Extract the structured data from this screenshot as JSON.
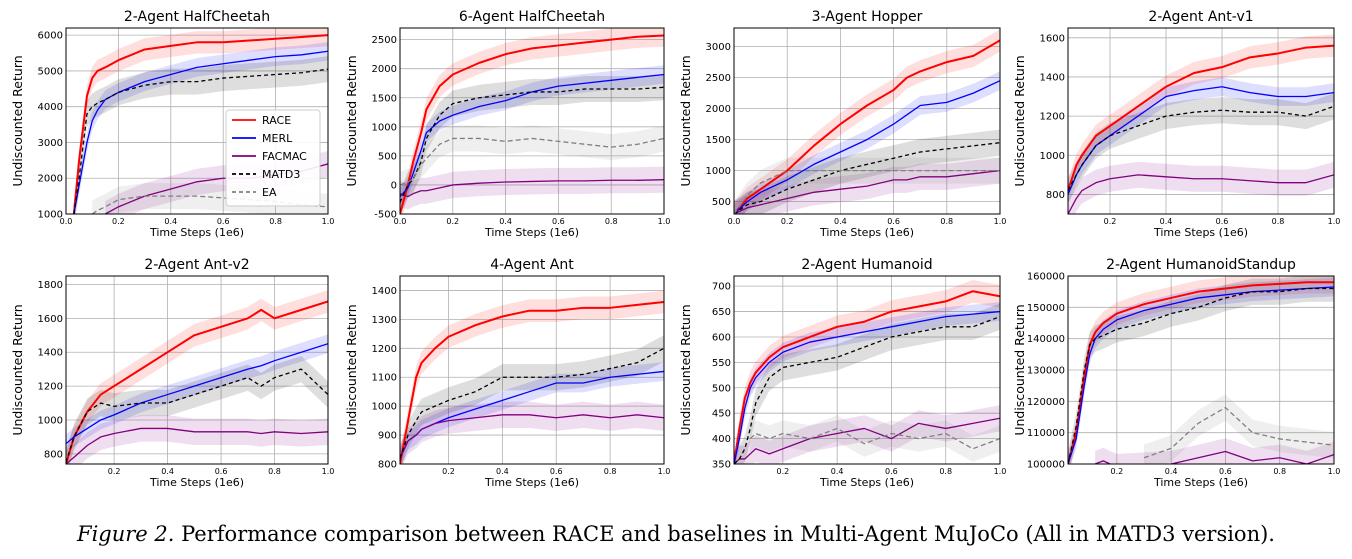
{
  "caption": {
    "label": "Figure 2.",
    "text": "Performance comparison between RACE and baselines in Multi-Agent MuJoCo (All in MATD3 version)."
  },
  "colors": {
    "RACE": "#ff0000",
    "MERL": "#0000ff",
    "FACMAC": "#800080",
    "MATD3": "#000000",
    "EA": "#808080"
  },
  "legend": {
    "placement": "lower right of first panel",
    "entries": [
      {
        "name": "RACE",
        "style": "solid",
        "color": "#ff0000"
      },
      {
        "name": "MERL",
        "style": "solid",
        "color": "#0000ff"
      },
      {
        "name": "FACMAC",
        "style": "solid",
        "color": "#800080"
      },
      {
        "name": "MATD3",
        "style": "dashed",
        "color": "#000000"
      },
      {
        "name": "EA",
        "style": "dashed",
        "color": "#808080"
      }
    ]
  },
  "chart_data": [
    {
      "type": "line",
      "title": "2-Agent HalfCheetah",
      "xlabel": "Time Steps (1e6)",
      "ylabel": "Undiscounted Return",
      "xlim": [
        0,
        1.0
      ],
      "ylim": [
        1000,
        6200
      ],
      "xticks": [
        "0.0",
        "0.2",
        "0.4",
        "0.6",
        "0.8",
        "1.0"
      ],
      "yticks": [
        "1000",
        "2000",
        "3000",
        "4000",
        "5000",
        "6000"
      ],
      "grid": true,
      "legend": true,
      "x": [
        0.03,
        0.05,
        0.08,
        0.1,
        0.12,
        0.15,
        0.2,
        0.3,
        0.4,
        0.5,
        0.6,
        0.7,
        0.8,
        0.9,
        1.0
      ],
      "series": [
        {
          "name": "RACE",
          "values": [
            1000,
            2500,
            4300,
            4800,
            5000,
            5100,
            5300,
            5600,
            5700,
            5800,
            5800,
            5850,
            5900,
            5950,
            6000
          ]
        },
        {
          "name": "MERL",
          "values": [
            1000,
            1800,
            3000,
            3600,
            3900,
            4200,
            4400,
            4700,
            4900,
            5100,
            5200,
            5300,
            5400,
            5450,
            5550
          ]
        },
        {
          "name": "FACMAC",
          "values": [
            null,
            null,
            null,
            null,
            null,
            1000,
            1200,
            1500,
            1700,
            1900,
            2000,
            2000,
            2100,
            2200,
            2400
          ]
        },
        {
          "name": "MATD3",
          "values": [
            1000,
            2000,
            3800,
            4000,
            4100,
            4200,
            4400,
            4600,
            4700,
            4700,
            4800,
            4850,
            4900,
            4950,
            5050
          ]
        },
        {
          "name": "EA",
          "values": [
            null,
            null,
            null,
            1000,
            1100,
            1200,
            1400,
            1500,
            1500,
            1500,
            1450,
            1400,
            1350,
            1250,
            1200
          ]
        }
      ]
    },
    {
      "type": "line",
      "title": "6-Agent HalfCheetah",
      "xlabel": "Time Steps (1e6)",
      "ylabel": "Undiscounted Return",
      "xlim": [
        0,
        1.0
      ],
      "ylim": [
        -500,
        2700
      ],
      "xticks": [
        "0.0",
        "0.2",
        "0.4",
        "0.6",
        "0.8",
        "1.0"
      ],
      "yticks": [
        "-500",
        "0",
        "500",
        "1000",
        "1500",
        "2000",
        "2500"
      ],
      "grid": true,
      "legend": false,
      "x": [
        0.0,
        0.03,
        0.05,
        0.08,
        0.1,
        0.15,
        0.2,
        0.3,
        0.4,
        0.5,
        0.6,
        0.7,
        0.8,
        0.9,
        1.0
      ],
      "series": [
        {
          "name": "RACE",
          "values": [
            -500,
            0,
            400,
            900,
            1300,
            1700,
            1900,
            2100,
            2250,
            2350,
            2400,
            2450,
            2500,
            2550,
            2570
          ]
        },
        {
          "name": "MERL",
          "values": [
            -200,
            -50,
            200,
            600,
            900,
            1100,
            1200,
            1350,
            1450,
            1600,
            1700,
            1750,
            1800,
            1850,
            1900
          ]
        },
        {
          "name": "FACMAC",
          "values": [
            -150,
            -200,
            -150,
            -100,
            -100,
            -50,
            0,
            30,
            50,
            60,
            70,
            70,
            80,
            80,
            90
          ]
        },
        {
          "name": "MATD3",
          "values": [
            -300,
            0,
            100,
            400,
            800,
            1200,
            1400,
            1500,
            1550,
            1600,
            1600,
            1650,
            1650,
            1650,
            1680
          ]
        },
        {
          "name": "EA",
          "values": [
            0,
            50,
            100,
            350,
            450,
            700,
            800,
            800,
            750,
            800,
            750,
            700,
            650,
            700,
            800
          ]
        }
      ]
    },
    {
      "type": "line",
      "title": "3-Agent Hopper",
      "xlabel": "Time Steps (1e6)",
      "ylabel": "Undiscounted Return",
      "xlim": [
        0,
        1.0
      ],
      "ylim": [
        300,
        3300
      ],
      "xticks": [
        "0.0",
        "0.2",
        "0.4",
        "0.6",
        "0.8",
        "1.0"
      ],
      "yticks": [
        "500",
        "1000",
        "1500",
        "2000",
        "2500",
        "3000"
      ],
      "grid": true,
      "legend": false,
      "x": [
        0.0,
        0.05,
        0.1,
        0.2,
        0.3,
        0.4,
        0.5,
        0.6,
        0.65,
        0.7,
        0.8,
        0.9,
        1.0
      ],
      "series": [
        {
          "name": "RACE",
          "values": [
            300,
            550,
            700,
            1000,
            1400,
            1750,
            2050,
            2300,
            2500,
            2600,
            2750,
            2850,
            3100
          ]
        },
        {
          "name": "MERL",
          "values": [
            300,
            500,
            650,
            850,
            1100,
            1300,
            1500,
            1750,
            1900,
            2050,
            2100,
            2250,
            2450
          ]
        },
        {
          "name": "FACMAC",
          "values": [
            300,
            400,
            450,
            550,
            650,
            700,
            750,
            850,
            850,
            900,
            900,
            950,
            1000
          ]
        },
        {
          "name": "MATD3",
          "values": [
            300,
            450,
            500,
            700,
            850,
            1000,
            1100,
            1200,
            1250,
            1300,
            1350,
            1400,
            1450
          ]
        },
        {
          "name": "EA",
          "values": [
            300,
            600,
            800,
            1000,
            1000,
            1000,
            1000,
            1000,
            1000,
            1000,
            1000,
            1000,
            1000
          ]
        }
      ]
    },
    {
      "type": "line",
      "title": "2-Agent Ant-v1",
      "xlabel": "Time Steps (1e6)",
      "ylabel": "Undiscounted Return",
      "xlim": [
        0.05,
        1.0
      ],
      "ylim": [
        700,
        1650
      ],
      "xticks": [
        "0.2",
        "0.4",
        "0.6",
        "0.8",
        "1.0"
      ],
      "yticks": [
        "800",
        "1000",
        "1200",
        "1400",
        "1600"
      ],
      "grid": true,
      "legend": false,
      "x": [
        0.05,
        0.08,
        0.1,
        0.15,
        0.2,
        0.3,
        0.4,
        0.5,
        0.6,
        0.7,
        0.8,
        0.9,
        1.0
      ],
      "series": [
        {
          "name": "RACE",
          "values": [
            820,
            950,
            1000,
            1100,
            1150,
            1250,
            1350,
            1420,
            1450,
            1500,
            1520,
            1550,
            1560
          ]
        },
        {
          "name": "MERL",
          "values": [
            800,
            900,
            950,
            1050,
            1100,
            1200,
            1300,
            1330,
            1350,
            1320,
            1300,
            1300,
            1320
          ]
        },
        {
          "name": "FACMAC",
          "values": [
            700,
            780,
            820,
            860,
            880,
            900,
            890,
            880,
            880,
            870,
            860,
            860,
            900
          ]
        },
        {
          "name": "MATD3",
          "values": [
            820,
            900,
            950,
            1050,
            1100,
            1150,
            1200,
            1220,
            1230,
            1220,
            1220,
            1200,
            1250
          ]
        }
      ]
    },
    {
      "type": "line",
      "title": "2-Agent Ant-v2",
      "xlabel": "Time Steps (1e6)",
      "ylabel": "Undiscounted Return",
      "xlim": [
        0.02,
        1.0
      ],
      "ylim": [
        740,
        1850
      ],
      "xticks": [
        "0.2",
        "0.4",
        "0.6",
        "0.8",
        "1.0"
      ],
      "yticks": [
        "800",
        "1000",
        "1200",
        "1400",
        "1600",
        "1800"
      ],
      "grid": true,
      "legend": false,
      "x": [
        0.02,
        0.05,
        0.1,
        0.15,
        0.2,
        0.3,
        0.4,
        0.5,
        0.6,
        0.7,
        0.75,
        0.8,
        0.9,
        1.0
      ],
      "series": [
        {
          "name": "RACE",
          "values": [
            740,
            900,
            1050,
            1150,
            1200,
            1300,
            1400,
            1500,
            1550,
            1600,
            1650,
            1600,
            1650,
            1700
          ]
        },
        {
          "name": "MERL",
          "values": [
            860,
            900,
            950,
            1000,
            1030,
            1100,
            1150,
            1200,
            1250,
            1300,
            1320,
            1350,
            1400,
            1450
          ]
        },
        {
          "name": "FACMAC",
          "values": [
            740,
            780,
            850,
            900,
            920,
            950,
            950,
            930,
            930,
            930,
            920,
            930,
            920,
            930
          ]
        },
        {
          "name": "MATD3",
          "values": [
            750,
            900,
            1050,
            1100,
            1080,
            1100,
            1100,
            1150,
            1200,
            1250,
            1200,
            1250,
            1300,
            1150
          ]
        }
      ]
    },
    {
      "type": "line",
      "title": "4-Agent Ant",
      "xlabel": "Time Steps (1e6)",
      "ylabel": "Undiscounted Return",
      "xlim": [
        0.02,
        1.0
      ],
      "ylim": [
        800,
        1450
      ],
      "xticks": [
        "0.2",
        "0.4",
        "0.6",
        "0.8",
        "1.0"
      ],
      "yticks": [
        "800",
        "900",
        "1000",
        "1100",
        "1200",
        "1300",
        "1400"
      ],
      "grid": true,
      "legend": false,
      "x": [
        0.02,
        0.05,
        0.08,
        0.1,
        0.15,
        0.2,
        0.3,
        0.4,
        0.5,
        0.6,
        0.7,
        0.8,
        0.9,
        1.0
      ],
      "series": [
        {
          "name": "RACE",
          "values": [
            800,
            950,
            1100,
            1150,
            1200,
            1240,
            1280,
            1310,
            1330,
            1330,
            1340,
            1340,
            1350,
            1360
          ]
        },
        {
          "name": "MERL",
          "values": [
            820,
            880,
            900,
            920,
            940,
            960,
            990,
            1020,
            1050,
            1080,
            1080,
            1100,
            1110,
            1120
          ]
        },
        {
          "name": "FACMAC",
          "values": [
            820,
            880,
            900,
            920,
            940,
            950,
            960,
            970,
            970,
            960,
            970,
            960,
            970,
            960
          ]
        },
        {
          "name": "MATD3",
          "values": [
            820,
            900,
            950,
            980,
            1000,
            1020,
            1050,
            1100,
            1100,
            1100,
            1110,
            1130,
            1150,
            1200
          ]
        }
      ]
    },
    {
      "type": "line",
      "title": "2-Agent Humanoid",
      "xlabel": "Time Steps (1e6)",
      "ylabel": "Undiscounted Return",
      "xlim": [
        0.02,
        1.0
      ],
      "ylim": [
        350,
        720
      ],
      "xticks": [
        "0.2",
        "0.4",
        "0.6",
        "0.8",
        "1.0"
      ],
      "yticks": [
        "350",
        "400",
        "450",
        "500",
        "550",
        "600",
        "650",
        "700"
      ],
      "grid": true,
      "legend": false,
      "x": [
        0.02,
        0.04,
        0.06,
        0.08,
        0.1,
        0.15,
        0.2,
        0.3,
        0.4,
        0.5,
        0.6,
        0.7,
        0.8,
        0.9,
        1.0
      ],
      "series": [
        {
          "name": "RACE",
          "values": [
            350,
            420,
            480,
            510,
            530,
            560,
            580,
            600,
            620,
            630,
            650,
            660,
            670,
            690,
            680
          ]
        },
        {
          "name": "MERL",
          "values": [
            350,
            400,
            460,
            500,
            520,
            550,
            570,
            590,
            600,
            610,
            620,
            630,
            640,
            645,
            650
          ]
        },
        {
          "name": "FACMAC",
          "values": [
            350,
            360,
            360,
            370,
            380,
            370,
            380,
            400,
            410,
            420,
            400,
            430,
            420,
            430,
            440
          ]
        },
        {
          "name": "MATD3",
          "values": [
            350,
            360,
            380,
            420,
            470,
            520,
            540,
            550,
            560,
            580,
            600,
            610,
            620,
            620,
            640
          ]
        },
        {
          "name": "EA",
          "values": [
            null,
            null,
            null,
            400,
            410,
            400,
            410,
            400,
            420,
            390,
            410,
            400,
            410,
            380,
            400
          ]
        }
      ]
    },
    {
      "type": "line",
      "title": "2-Agent HumanoidStandup",
      "xlabel": "Time Steps (1e6)",
      "ylabel": "Undiscounted Return",
      "xlim": [
        0.02,
        1.0
      ],
      "ylim": [
        100000,
        160000
      ],
      "xticks": [
        "0.2",
        "0.4",
        "0.6",
        "0.8",
        "1.0"
      ],
      "yticks": [
        "100000",
        "110000",
        "120000",
        "130000",
        "140000",
        "150000",
        "160000"
      ],
      "grid": true,
      "legend": false,
      "x": [
        0.02,
        0.05,
        0.08,
        0.1,
        0.12,
        0.15,
        0.2,
        0.3,
        0.4,
        0.5,
        0.6,
        0.7,
        0.8,
        0.9,
        1.0
      ],
      "series": [
        {
          "name": "RACE",
          "values": [
            100000,
            110000,
            128000,
            138000,
            142000,
            145000,
            148000,
            151000,
            153000,
            155000,
            156000,
            157000,
            157500,
            158000,
            158000
          ]
        },
        {
          "name": "MERL",
          "values": [
            100000,
            108000,
            125000,
            135000,
            140000,
            143000,
            146000,
            149000,
            151000,
            153000,
            154000,
            155000,
            155500,
            156000,
            156500
          ]
        },
        {
          "name": "FACMAC",
          "values": [
            null,
            null,
            null,
            null,
            100000,
            101000,
            99000,
            99500,
            100000,
            102000,
            104000,
            101000,
            102000,
            100000,
            103000
          ]
        },
        {
          "name": "MATD3",
          "values": [
            100000,
            112000,
            130000,
            138000,
            140000,
            141000,
            143000,
            145000,
            148000,
            150000,
            153000,
            155000,
            155000,
            156000,
            156000
          ]
        },
        {
          "name": "EA",
          "values": [
            null,
            null,
            null,
            null,
            null,
            null,
            null,
            102000,
            105000,
            113000,
            118000,
            110000,
            108000,
            107000,
            106000
          ]
        }
      ]
    }
  ]
}
